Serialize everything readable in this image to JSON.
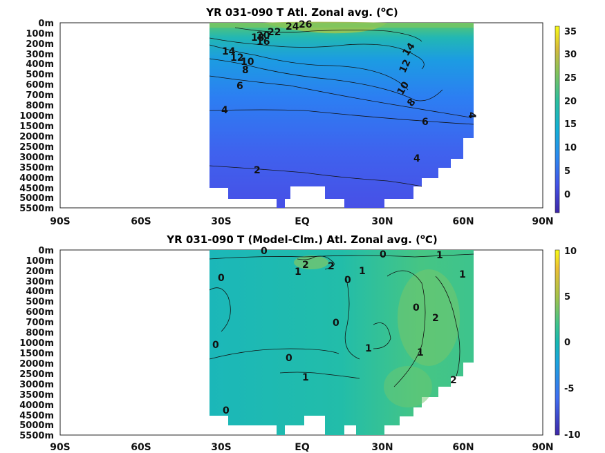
{
  "chart_data": [
    {
      "type": "heatmap",
      "title": "YR 031-090 T Atl. Zonal avg. (",
      "title_sup": "o",
      "title_tail": "C)",
      "x_ticks": [
        "90S",
        "60S",
        "30S",
        "EQ",
        "30N",
        "60N",
        "90N"
      ],
      "x_range": [
        -90,
        90
      ],
      "y_ticks": [
        "0m",
        "100m",
        "200m",
        "300m",
        "400m",
        "500m",
        "600m",
        "700m",
        "800m",
        "1000m",
        "1500m",
        "2000m",
        "2500m",
        "3000m",
        "3500m",
        "4000m",
        "4500m",
        "5000m",
        "5500m"
      ],
      "colorbar_ticks": [
        "35",
        "30",
        "25",
        "20",
        "15",
        "10",
        "5",
        "0"
      ],
      "colorbar_range": [
        -4,
        36
      ],
      "contour_labels": [
        "26",
        "24",
        "22",
        "20",
        "18",
        "16",
        "14",
        "12",
        "10",
        "8",
        "6",
        "4",
        "2",
        "14",
        "12",
        "10",
        "8",
        "6",
        "4",
        "4"
      ]
    },
    {
      "type": "heatmap",
      "title": "YR 031-090 T (Model-Clm.) Atl. Zonal avg. (",
      "title_sup": "o",
      "title_tail": "C)",
      "x_ticks": [
        "90S",
        "60S",
        "30S",
        "EQ",
        "30N",
        "60N",
        "90N"
      ],
      "x_range": [
        -90,
        90
      ],
      "y_ticks": [
        "0m",
        "100m",
        "200m",
        "300m",
        "400m",
        "500m",
        "600m",
        "700m",
        "800m",
        "1000m",
        "1500m",
        "2000m",
        "2500m",
        "3000m",
        "3500m",
        "4000m",
        "4500m",
        "5000m",
        "5500m"
      ],
      "colorbar_ticks": [
        "10",
        "5",
        "0",
        "-5",
        "-10"
      ],
      "colorbar_range": [
        -10,
        10
      ],
      "contour_labels": [
        "0",
        "1",
        "2",
        "2",
        "0",
        "1",
        "0",
        "1",
        "0",
        "0",
        "0",
        "0",
        "2",
        "1",
        "0",
        "1",
        "1",
        "1",
        "2",
        "0"
      ]
    }
  ]
}
